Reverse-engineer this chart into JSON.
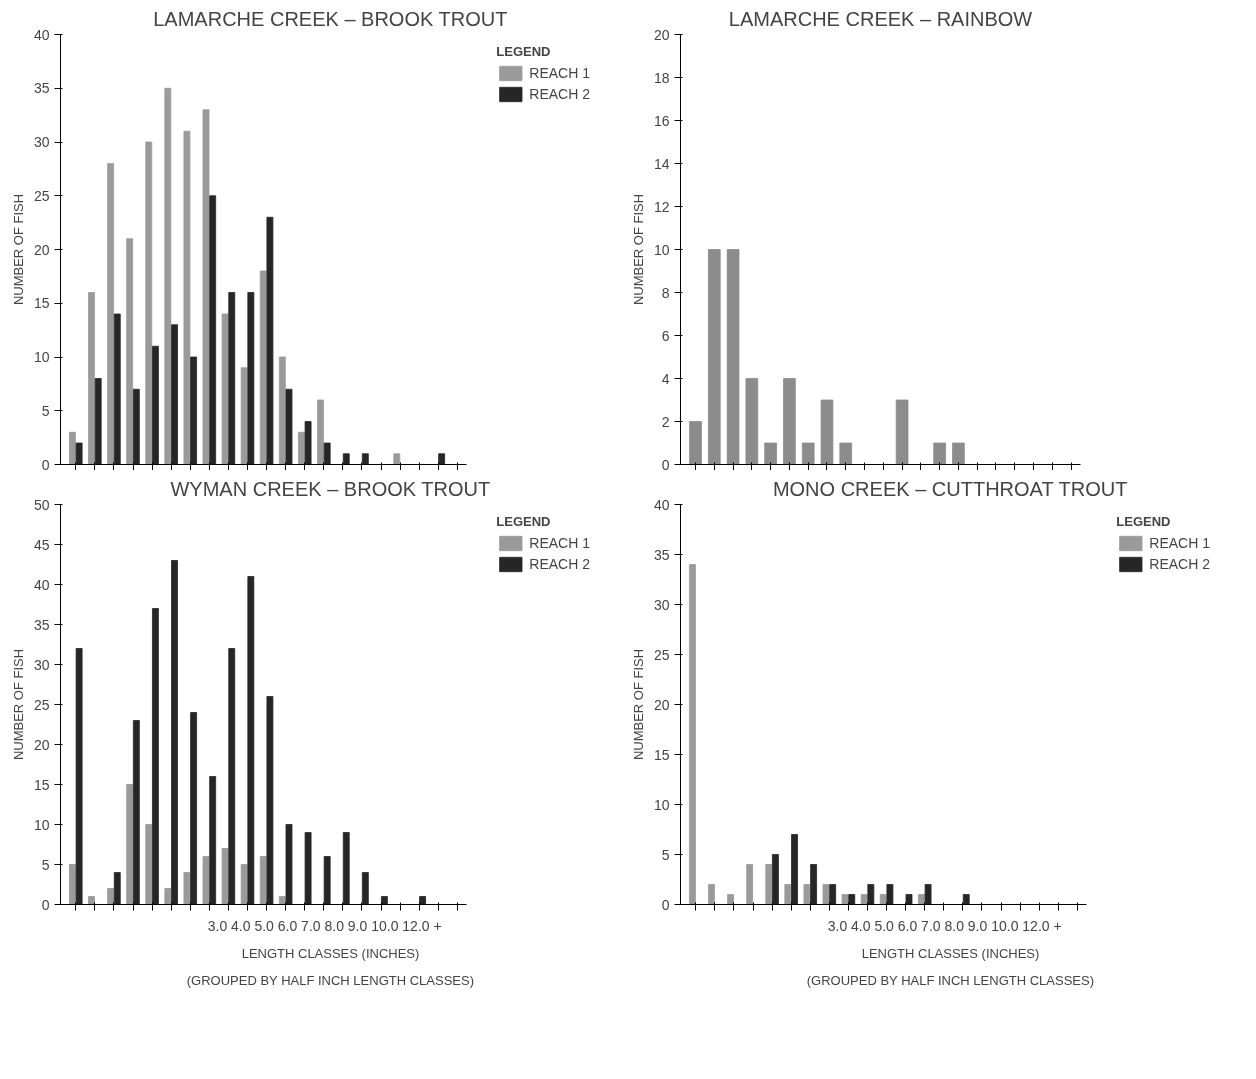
{
  "chart_data": [
    {
      "type": "bar",
      "title": "LAMARCHE CREEK – BROOK TROUT",
      "ylabel": "NUMBER OF FISH",
      "categories": [
        null,
        null,
        null,
        null,
        null,
        null,
        null,
        null,
        null,
        null,
        null,
        null,
        null,
        null,
        null,
        null,
        null,
        null,
        null,
        null,
        null
      ],
      "ylim": [
        0,
        40
      ],
      "yticks": [
        0,
        5,
        10,
        15,
        20,
        25,
        30,
        35,
        40
      ],
      "tick_labels": "y",
      "legend": "top right",
      "legend_title": "LEGEND",
      "series": [
        {
          "name": "REACH 1",
          "color": "#9a9a9a",
          "values": [
            3,
            16,
            28,
            21,
            30,
            35,
            31,
            33,
            14,
            9,
            18,
            10,
            3,
            6,
            0,
            0,
            0,
            1,
            0,
            0,
            0
          ]
        },
        {
          "name": "REACH 2",
          "color": "#262626",
          "values": [
            2,
            8,
            14,
            7,
            11,
            13,
            10,
            25,
            16,
            16,
            23,
            7,
            4,
            2,
            1,
            1,
            0,
            0,
            0,
            1,
            0
          ]
        }
      ]
    },
    {
      "type": "bar",
      "title": "LAMARCHE CREEK – RAINBOW",
      "ylabel": "NUMBER OF FISH",
      "categories": [
        null,
        null,
        null,
        null,
        null,
        null,
        null,
        null,
        null,
        null,
        null,
        null,
        null,
        null,
        null,
        null,
        null,
        null,
        null,
        null,
        null
      ],
      "ylim": [
        0,
        20
      ],
      "yticks": [
        0,
        2,
        4,
        6,
        8,
        10,
        12,
        14,
        16,
        18,
        20
      ],
      "tick_labels": "y",
      "series": [
        {
          "color": "#8c8c8c",
          "values": [
            2,
            10,
            10,
            4,
            1,
            4,
            1,
            3,
            1,
            0,
            0,
            3,
            0,
            1,
            1,
            0,
            0,
            0,
            0,
            0,
            0
          ]
        }
      ]
    },
    {
      "type": "bar",
      "title": "WYMAN CREEK – BROOK TROUT",
      "ylabel": "NUMBER OF FISH",
      "xlabel": "LENGTH CLASSES (INCHES)\n(GROUPED BY HALF INCH LENGTH CLASSES)",
      "annotations": [
        "3.0 4.0 5.0 6.0 7.0 8.0 9.0 10.0    12.0 +"
      ],
      "categories": [
        null,
        null,
        null,
        null,
        null,
        null,
        null,
        null,
        null,
        null,
        null,
        null,
        null,
        null,
        null,
        null,
        null,
        null,
        null,
        null,
        null
      ],
      "ylim": [
        0,
        50
      ],
      "yticks": [
        0,
        5,
        10,
        15,
        20,
        25,
        30,
        35,
        40,
        45,
        50
      ],
      "tick_labels": "y",
      "legend": "top right",
      "legend_title": "LEGEND",
      "series": [
        {
          "name": "REACH 1",
          "color": "#9a9a9a",
          "values": [
            5,
            1,
            2,
            15,
            10,
            2,
            4,
            6,
            7,
            5,
            6,
            1,
            0,
            0,
            0,
            0,
            0,
            0,
            0,
            0,
            0
          ]
        },
        {
          "name": "REACH 2",
          "color": "#262626",
          "values": [
            32,
            0,
            4,
            23,
            37,
            43,
            24,
            16,
            32,
            41,
            26,
            10,
            9,
            6,
            9,
            4,
            1,
            0,
            1,
            0,
            0
          ]
        }
      ]
    },
    {
      "type": "bar",
      "title": "MONO CREEK – CUTTHROAT TROUT",
      "ylabel": "NUMBER OF FISH",
      "xlabel": "LENGTH CLASSES (INCHES)\n(GROUPED BY HALF INCH LENGTH CLASSES)",
      "annotations": [
        "3.0 4.0 5.0 6.0 7.0 8.0 9.0 10.0    12.0 +"
      ],
      "categories": [
        null,
        null,
        null,
        null,
        null,
        null,
        null,
        null,
        null,
        null,
        null,
        null,
        null,
        null,
        null,
        null,
        null,
        null,
        null,
        null,
        null
      ],
      "ylim": [
        0,
        40
      ],
      "yticks": [
        0,
        5,
        10,
        15,
        20,
        25,
        30,
        35,
        40
      ],
      "tick_labels": "y",
      "legend": "top right",
      "legend_title": "LEGEND",
      "series": [
        {
          "name": "REACH 1",
          "color": "#9a9a9a",
          "values": [
            34,
            2,
            1,
            4,
            4,
            2,
            2,
            2,
            1,
            1,
            1,
            0,
            1,
            0,
            0,
            0,
            0,
            0,
            0,
            0,
            0
          ]
        },
        {
          "name": "REACH 2",
          "color": "#262626",
          "values": [
            0,
            0,
            0,
            0,
            5,
            7,
            4,
            2,
            1,
            2,
            2,
            1,
            2,
            0,
            1,
            0,
            0,
            0,
            0,
            0,
            0
          ]
        }
      ]
    }
  ]
}
